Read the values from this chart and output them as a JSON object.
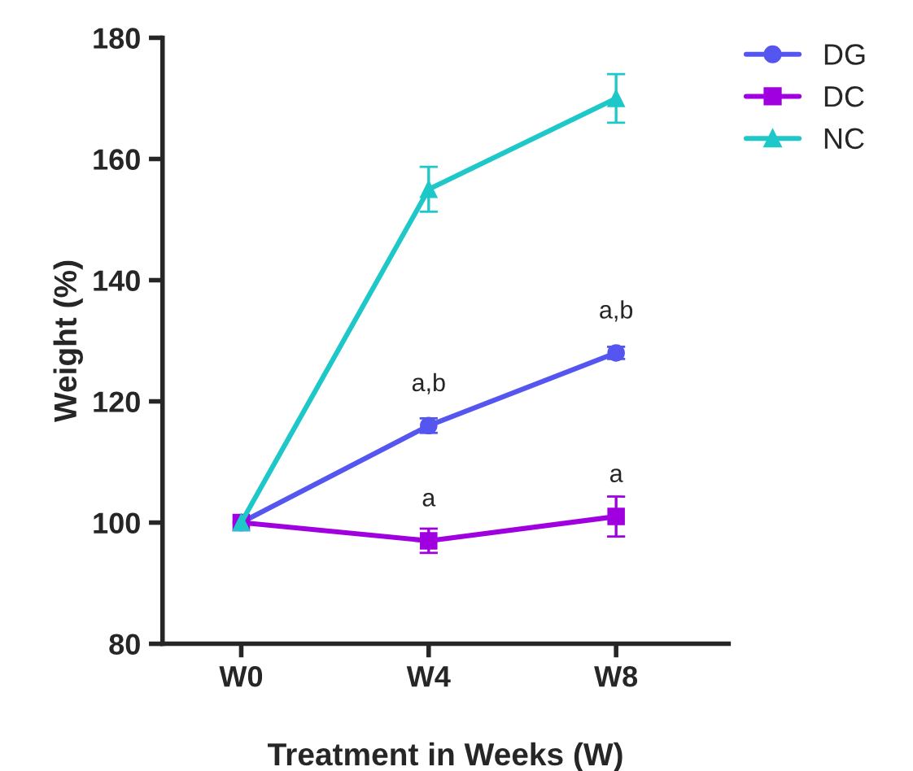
{
  "chart_data": {
    "type": "line",
    "xlabel": "Treatment in Weeks (W)",
    "ylabel": "Weight (%)",
    "categories": [
      "W0",
      "W4",
      "W8"
    ],
    "series": [
      {
        "name": "DG",
        "color": "#5555f0",
        "marker": "circle",
        "values": [
          100,
          116,
          128
        ],
        "errors": [
          null,
          1.2,
          1
        ]
      },
      {
        "name": "DC",
        "color": "#a000e0",
        "marker": "square",
        "values": [
          100,
          97,
          101
        ],
        "errors": [
          null,
          2,
          3.3
        ]
      },
      {
        "name": "NC",
        "color": "#1ec8c8",
        "marker": "triangle",
        "values": [
          100,
          155,
          170
        ],
        "errors": [
          null,
          3.7,
          4
        ]
      }
    ],
    "annotations": [
      {
        "text": "a,b",
        "x": "W4",
        "y": 116
      },
      {
        "text": "a,b",
        "x": "W8",
        "y": 128
      },
      {
        "text": "a",
        "x": "W4",
        "y": 97
      },
      {
        "text": "a",
        "x": "W8",
        "y": 101
      }
    ],
    "ylim": [
      80,
      180
    ],
    "yticks": [
      80,
      100,
      120,
      140,
      160,
      180
    ],
    "grid": false,
    "legend": "top right"
  }
}
